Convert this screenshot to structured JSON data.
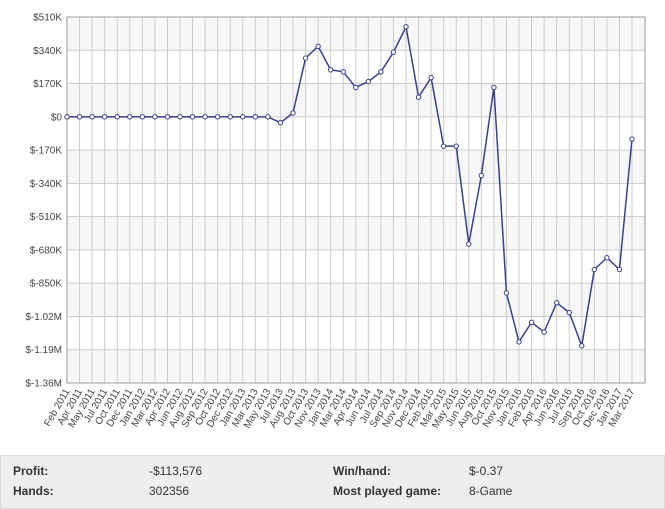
{
  "chart_data": {
    "type": "line",
    "categories": [
      "Feb 2011",
      "Apr 2011",
      "May 2011",
      "Jul 2011",
      "Oct 2011",
      "Dec 2011",
      "Jan 2012",
      "Mar 2012",
      "Apr 2012",
      "Jun 2012",
      "Aug 2012",
      "Sep 2012",
      "Oct 2012",
      "Dec 2012",
      "Jan 2013",
      "Mar 2013",
      "May 2013",
      "Jul 2013",
      "Aug 2013",
      "Oct 2013",
      "Nov 2013",
      "Jan 2014",
      "Mar 2014",
      "Apr 2014",
      "Jun 2014",
      "Jul 2014",
      "Sep 2014",
      "Nov 2014",
      "Dec 2014",
      "Feb 2015",
      "Mar 2015",
      "May 2015",
      "Jun 2015",
      "Aug 2015",
      "Oct 2015",
      "Nov 2015",
      "Jan 2016",
      "Feb 2016",
      "Apr 2016",
      "Jun 2016",
      "Jul 2016",
      "Sep 2016",
      "Oct 2016",
      "Dec 2016",
      "Jan 2017",
      "Mar 2017"
    ],
    "series": [
      {
        "color": "#3a3f8f",
        "values": [
          0,
          0,
          0,
          0,
          0,
          0,
          0,
          0,
          0,
          0,
          0,
          0,
          0,
          0,
          0,
          0,
          0,
          -30000,
          20000,
          300000,
          360000,
          240000,
          230000,
          150000,
          180000,
          230000,
          330000,
          460000,
          100000,
          200000,
          -150000,
          -150000,
          -650000,
          -300000,
          150000,
          -900000,
          -1150000,
          -1050000,
          -1100000,
          -950000,
          -1000000,
          -1170000,
          -780000,
          -720000,
          -780000,
          -113576
        ]
      }
    ],
    "ylim": [
      -1360000,
      510000
    ],
    "yticks": [
      {
        "value": 510000,
        "label": "$510K"
      },
      {
        "value": 340000,
        "label": "$340K"
      },
      {
        "value": 170000,
        "label": "$170K"
      },
      {
        "value": 0,
        "label": "$0"
      },
      {
        "value": -170000,
        "label": "$-170K"
      },
      {
        "value": -340000,
        "label": "$-340K"
      },
      {
        "value": -510000,
        "label": "$-510K"
      },
      {
        "value": -680000,
        "label": "$-680K"
      },
      {
        "value": -850000,
        "label": "$-850K"
      },
      {
        "value": -1020000,
        "label": "$-1.02M"
      },
      {
        "value": -1190000,
        "label": "$-1.19M"
      },
      {
        "value": -1360000,
        "label": "$-1.36M"
      }
    ],
    "grid": true
  },
  "stats": {
    "profit_label": "Profit:",
    "profit": "-$113,576",
    "winhand_label": "Win/hand:",
    "winhand": "$-0.37",
    "hands_label": "Hands:",
    "hands": "302356",
    "game_label": "Most played game:",
    "game": "8-Game"
  }
}
